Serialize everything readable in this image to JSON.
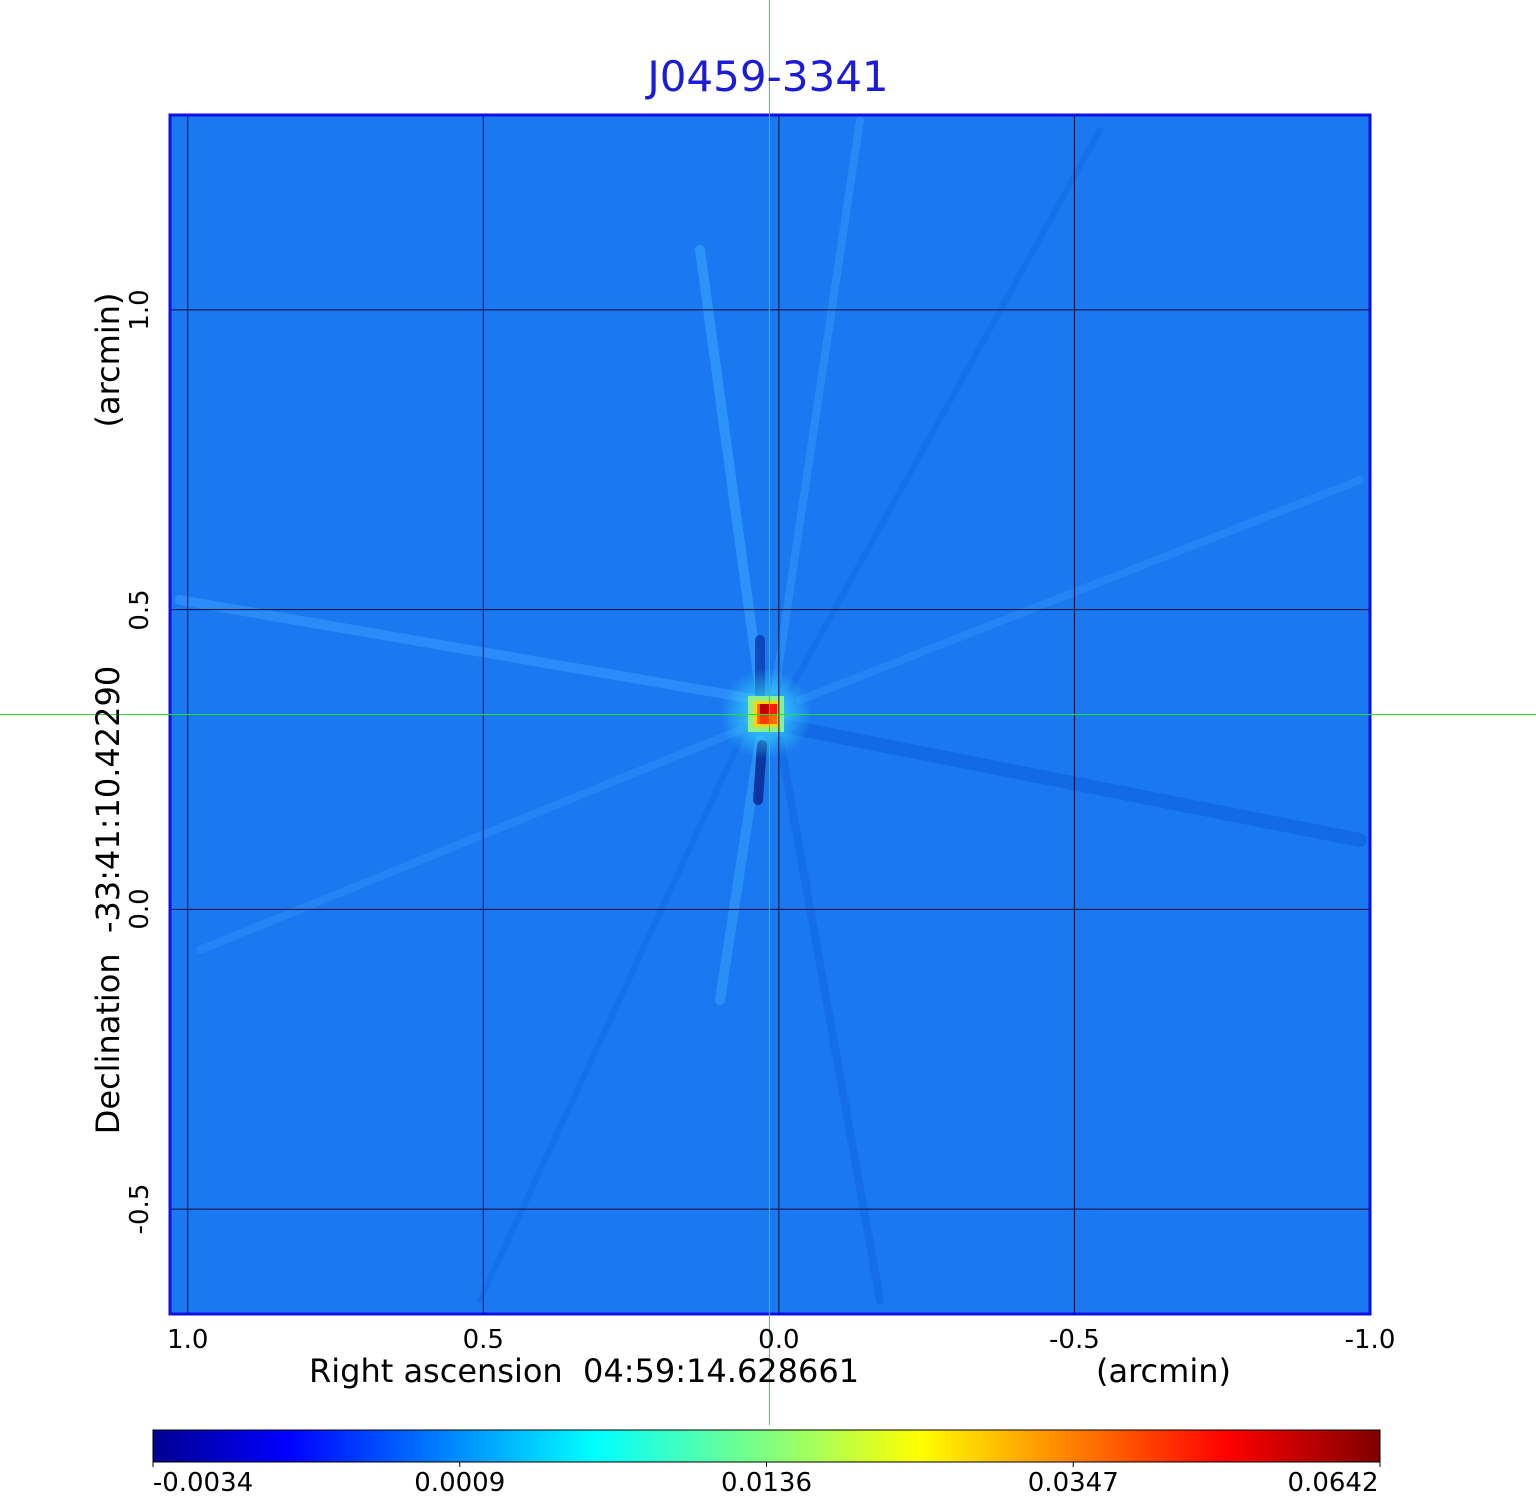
{
  "chart_data": {
    "type": "heatmap",
    "title": "J0459-3341",
    "xlabel": {
      "prefix": "Right ascension",
      "center": "04:59:14.628661",
      "unit": "(arcmin)"
    },
    "ylabel": {
      "prefix": "Declination",
      "center": "-33:41:10.42290",
      "unit": "(arcmin)"
    },
    "x_ticks": [
      "1.0",
      "0.5",
      "0.0",
      "-0.5",
      "-1.0"
    ],
    "x_tick_values": [
      1.0,
      0.5,
      0.0,
      -0.5,
      -1.0
    ],
    "y_ticks": [
      "1.0",
      "0.5",
      "0.0",
      "-0.5"
    ],
    "y_tick_values": [
      1.0,
      0.5,
      0.0,
      -0.5
    ],
    "xlim": [
      1.03,
      -1.0
    ],
    "ylim": [
      -0.675,
      1.325
    ],
    "grid": true,
    "crosshair": {
      "x": 0.016,
      "y": 0.325
    },
    "source": {
      "x": 0.0,
      "y": 0.325,
      "peak": 0.0642
    },
    "colorbar": {
      "colormap": "jet",
      "tick_labels": [
        "-0.0034",
        "0.0009",
        "0.0136",
        "0.0347",
        "0.0642"
      ],
      "tick_values": [
        -0.0034,
        0.0009,
        0.0136,
        0.0347,
        0.0642
      ]
    },
    "colors": {
      "title": "#1c1cd6",
      "frame": "#1010e6",
      "background": "#1a78f0",
      "crosshair": "#22e022",
      "grid": "#0a0a3a"
    }
  }
}
